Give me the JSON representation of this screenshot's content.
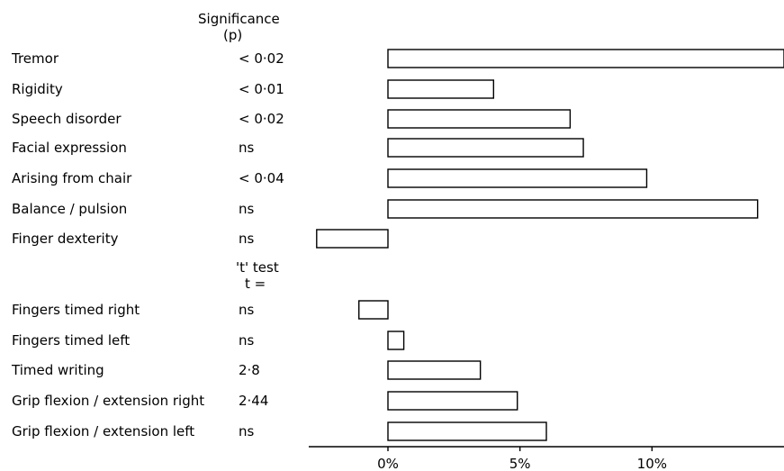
{
  "chart_data": {
    "type": "bar",
    "orientation": "horizontal",
    "title": "",
    "xlabel": "",
    "ylabel": "",
    "significance_header": "Significance",
    "significance_subheader": "(p)",
    "ttest_header": "'t' test",
    "ttest_subheader": "t =",
    "xlim": [
      -3,
      15
    ],
    "x_ticks": [
      0,
      5,
      10
    ],
    "x_tick_labels": [
      "0%",
      "5%",
      "10%"
    ],
    "grid": false,
    "legend": "none",
    "groups": [
      {
        "test": "significance",
        "categories": [
          "Tremor",
          "Rigidity",
          "Speech disorder",
          "Facial expression",
          "Arising from chair",
          "Balance / pulsion",
          "Finger dexterity"
        ],
        "stat_labels": [
          "< 0·02",
          "< 0·01",
          "< 0·02",
          "ns",
          "< 0·04",
          "ns",
          "ns"
        ],
        "values": [
          15.0,
          4.0,
          6.9,
          7.4,
          9.8,
          14.0,
          -2.7
        ]
      },
      {
        "test": "t-test",
        "categories": [
          "Fingers timed right",
          "Fingers timed left",
          "Timed writing",
          "Grip flexion / extension right",
          "Grip flexion / extension left"
        ],
        "stat_labels": [
          "ns",
          "ns",
          "2·8",
          "2·44",
          "ns"
        ],
        "values": [
          -1.1,
          0.6,
          3.5,
          4.9,
          6.0
        ]
      }
    ]
  }
}
